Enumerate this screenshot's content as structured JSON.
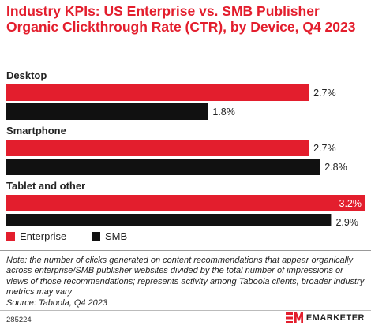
{
  "title": "Industry KPIs: US Enterprise vs. SMB Publisher Organic Clickthrough Rate (CTR), by Device, Q4 2023",
  "colors": {
    "accent": "#e31e2d",
    "enterprise": "#e31e2d",
    "smb": "#111111"
  },
  "chart_data": {
    "type": "bar",
    "orientation": "horizontal",
    "categories": [
      "Desktop",
      "Smartphone",
      "Tablet and other"
    ],
    "series": [
      {
        "name": "Enterprise",
        "values": [
          2.7,
          2.7,
          3.2
        ],
        "labels": [
          "2.7%",
          "2.7%",
          "3.2%"
        ]
      },
      {
        "name": "SMB",
        "values": [
          1.8,
          2.8,
          2.9
        ],
        "labels": [
          "1.8%",
          "2.8%",
          "2.9%"
        ]
      }
    ],
    "xlim": [
      0,
      3.2
    ],
    "grid": false,
    "legend_position": "bottom-left"
  },
  "legend": {
    "items": [
      "Enterprise",
      "SMB"
    ]
  },
  "note": "Note: the number of clicks generated on content recommendations that appear organically across enterprise/SMB publisher websites divided by the total number of impressions or views of those recommendations; represents activity among Taboola clients, broader industry metrics may vary",
  "source": "Source: Taboola, Q4 2023",
  "footer": {
    "chart_id": "285224",
    "brand": "EMARKETER",
    "logo_icon": "em-logo-icon"
  }
}
